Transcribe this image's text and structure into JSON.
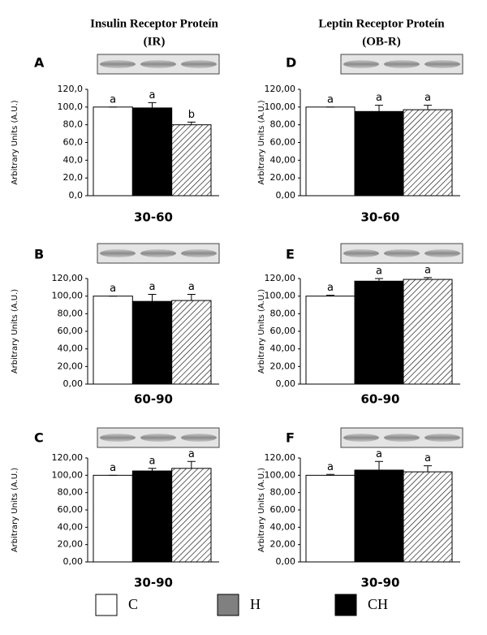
{
  "headers": [
    [
      "Insulin Receptor Proteín",
      "(IR)"
    ],
    [
      "Leptin Receptor Proteín",
      "(OB-R)"
    ]
  ],
  "chart_data": [
    {
      "type": "bar",
      "panel": "A",
      "xlabel": "30-60",
      "ylabel": "Arbitrary Units (A.U.)",
      "categories": [
        null,
        null,
        null
      ],
      "values": [
        100,
        99,
        80
      ],
      "errors": [
        0,
        6,
        3
      ],
      "annotations": [
        "a",
        "a",
        "b"
      ],
      "fills": [
        "white",
        "black",
        "hatched"
      ],
      "ylim": [
        0,
        120
      ],
      "yticks": [
        {
          "value": 0,
          "label": "0,0"
        },
        {
          "value": 20,
          "label": "20,0"
        },
        {
          "value": 40,
          "label": "40,0"
        },
        {
          "value": 60,
          "label": "60,0"
        },
        {
          "value": 80,
          "label": "80,0"
        },
        {
          "value": 100,
          "label": "100,0"
        },
        {
          "value": 120,
          "label": "120,0"
        }
      ]
    },
    {
      "type": "bar",
      "panel": "B",
      "xlabel": "60-90",
      "ylabel": "Arbitrary Units (A.U.)",
      "categories": [
        null,
        null,
        null
      ],
      "values": [
        100,
        94,
        95
      ],
      "errors": [
        0,
        8,
        7
      ],
      "annotations": [
        "a",
        "a",
        "a"
      ],
      "fills": [
        "white",
        "black",
        "hatched"
      ],
      "ylim": [
        0,
        120
      ],
      "yticks": [
        {
          "value": 0,
          "label": "0,00"
        },
        {
          "value": 20,
          "label": "20,00"
        },
        {
          "value": 40,
          "label": "40,00"
        },
        {
          "value": 60,
          "label": "60,00"
        },
        {
          "value": 80,
          "label": "80,00"
        },
        {
          "value": 100,
          "label": "100,00"
        },
        {
          "value": 120,
          "label": "120,00"
        }
      ]
    },
    {
      "type": "bar",
      "panel": "C",
      "xlabel": "30-90",
      "ylabel": "Arbitrary Units (A.U.)",
      "categories": [
        null,
        null,
        null
      ],
      "values": [
        100,
        105,
        108
      ],
      "errors": [
        0,
        3,
        8
      ],
      "annotations": [
        "a",
        "a",
        "a"
      ],
      "fills": [
        "white",
        "black",
        "hatched"
      ],
      "ylim": [
        0,
        120
      ],
      "yticks": [
        {
          "value": 0,
          "label": "0,00"
        },
        {
          "value": 20,
          "label": "20,00"
        },
        {
          "value": 40,
          "label": "40,00"
        },
        {
          "value": 60,
          "label": "60,00"
        },
        {
          "value": 80,
          "label": "80,00"
        },
        {
          "value": 100,
          "label": "100,00"
        },
        {
          "value": 120,
          "label": "120,00"
        }
      ]
    },
    {
      "type": "bar",
      "panel": "D",
      "xlabel": "30-60",
      "ylabel": "Arbitrary Units (A.U.)",
      "categories": [
        null,
        null,
        null
      ],
      "values": [
        100,
        95,
        97
      ],
      "errors": [
        0,
        7,
        5
      ],
      "annotations": [
        "a",
        "a",
        "a"
      ],
      "fills": [
        "white",
        "black",
        "hatched"
      ],
      "ylim": [
        0,
        120
      ],
      "yticks": [
        {
          "value": 0,
          "label": "0,00"
        },
        {
          "value": 20,
          "label": "20,00"
        },
        {
          "value": 40,
          "label": "40,00"
        },
        {
          "value": 60,
          "label": "60,00"
        },
        {
          "value": 80,
          "label": "80,00"
        },
        {
          "value": 100,
          "label": "100,00"
        },
        {
          "value": 120,
          "label": "120,00"
        }
      ]
    },
    {
      "type": "bar",
      "panel": "E",
      "xlabel": "60-90",
      "ylabel": "Arbitrary Units (A.U.)",
      "categories": [
        null,
        null,
        null
      ],
      "values": [
        100,
        117,
        119
      ],
      "errors": [
        1,
        3,
        2
      ],
      "annotations": [
        "a",
        "a",
        "a"
      ],
      "fills": [
        "white",
        "black",
        "hatched"
      ],
      "ylim": [
        0,
        120
      ],
      "yticks": [
        {
          "value": 0,
          "label": "0,00"
        },
        {
          "value": 20,
          "label": "20,00"
        },
        {
          "value": 40,
          "label": "40,00"
        },
        {
          "value": 60,
          "label": "60,00"
        },
        {
          "value": 80,
          "label": "80,00"
        },
        {
          "value": 100,
          "label": "100,00"
        },
        {
          "value": 120,
          "label": "120,00"
        }
      ]
    },
    {
      "type": "bar",
      "panel": "F",
      "xlabel": "30-90",
      "ylabel": "Arbitrary Units (A.U.)",
      "categories": [
        null,
        null,
        null
      ],
      "values": [
        100,
        106,
        104
      ],
      "errors": [
        1,
        10,
        7
      ],
      "annotations": [
        "a",
        "a",
        "a"
      ],
      "fills": [
        "white",
        "black",
        "hatched"
      ],
      "ylim": [
        0,
        120
      ],
      "yticks": [
        {
          "value": 0,
          "label": "0,00"
        },
        {
          "value": 20,
          "label": "20,00"
        },
        {
          "value": 40,
          "label": "40,00"
        },
        {
          "value": 60,
          "label": "60,00"
        },
        {
          "value": 80,
          "label": "80,00"
        },
        {
          "value": 100,
          "label": "100,00"
        },
        {
          "value": 120,
          "label": "120,00"
        }
      ]
    }
  ],
  "legend": [
    {
      "label": "C",
      "color": "#ffffff"
    },
    {
      "label": "H",
      "color": "#808080"
    },
    {
      "label": "CH",
      "color": "#000000"
    }
  ]
}
